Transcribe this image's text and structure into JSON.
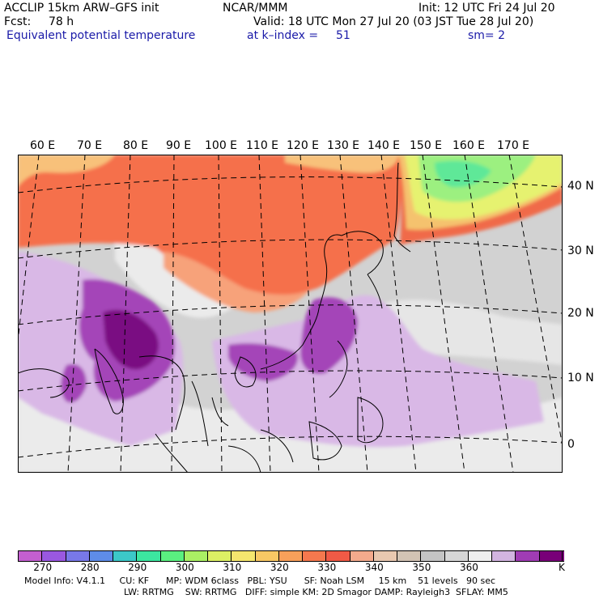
{
  "header": {
    "model": "ACCLIP 15km ARW–GFS init",
    "org": "NCAR/MMM",
    "init": "Init: 12 UTC Fri 24 Jul 20",
    "fcst_label": "Fcst:",
    "fcst_value": "78 h",
    "valid": "Valid: 18 UTC Mon 27 Jul 20 (03 JST Tue 28 Jul 20)",
    "field": "Equivalent potential temperature",
    "level": "at k–index =",
    "level_value": "51",
    "smooth": "sm= 2"
  },
  "lon_labels": [
    "60 E",
    "70 E",
    "80 E",
    "90 E",
    "100 E",
    "110 E",
    "120 E",
    "130 E",
    "140 E",
    "150 E",
    "160 E",
    "170 E"
  ],
  "lat_labels": [
    "40 N",
    "30 N",
    "20 N",
    "10 N",
    "0"
  ],
  "colorbar": {
    "colors": [
      "#c35fcf",
      "#9a58e0",
      "#7878e8",
      "#5e8ce8",
      "#3cc8c8",
      "#3ce6a0",
      "#5af080",
      "#aaf064",
      "#dcf064",
      "#f5e66e",
      "#f8c864",
      "#f8a05a",
      "#f5784e",
      "#f05a46",
      "#f4aa8c",
      "#e8c8b0",
      "#d2c3b4",
      "#c4c4c4",
      "#d7d7d7",
      "#efefef",
      "#d2b4e0",
      "#a03cb4",
      "#780078"
    ],
    "labels": [
      "270",
      "280",
      "290",
      "300",
      "310",
      "320",
      "330",
      "340",
      "350",
      "360"
    ],
    "unit": "K"
  },
  "footer": {
    "line1": "Model Info: V4.1.1     CU: KF      MP: WDM 6class   PBL: YSU      SF: Noah LSM     15 km    51 levels   90 sec",
    "line2": "LW: RRTMG    SW: RRTMG   DIFF: simple KM: 2D Smagor DAMP: Rayleigh3  SFLAY: MM5"
  }
}
